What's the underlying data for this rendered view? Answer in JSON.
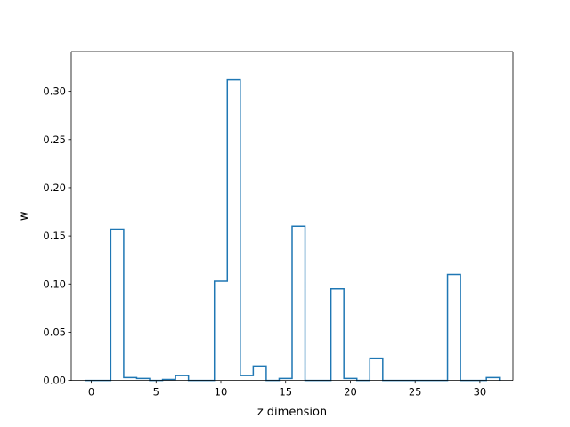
{
  "chart_data": {
    "type": "bar",
    "style": "step-histogram",
    "xlabel": "z dimension",
    "ylabel": "w",
    "xlim": [
      -1.55,
      32.55
    ],
    "ylim": [
      0,
      0.3412
    ],
    "x_ticks": [
      0,
      5,
      10,
      15,
      20,
      25,
      30
    ],
    "x_tick_labels": [
      "0",
      "5",
      "10",
      "15",
      "20",
      "25",
      "30"
    ],
    "y_ticks": [
      0.0,
      0.05,
      0.1,
      0.15,
      0.2,
      0.25,
      0.3
    ],
    "y_tick_labels": [
      "0.00",
      "0.05",
      "0.10",
      "0.15",
      "0.20",
      "0.25",
      "0.30"
    ],
    "grid": false,
    "line_color": "#1f77b4",
    "x": [
      0,
      1,
      2,
      3,
      4,
      5,
      6,
      7,
      8,
      9,
      10,
      11,
      12,
      13,
      14,
      15,
      16,
      17,
      18,
      19,
      20,
      21,
      22,
      23,
      24,
      25,
      26,
      27,
      28,
      29,
      30,
      31
    ],
    "values": [
      0.0,
      0.0,
      0.157,
      0.003,
      0.002,
      0.0,
      0.001,
      0.005,
      0.0,
      0.0,
      0.103,
      0.312,
      0.005,
      0.015,
      0.0,
      0.002,
      0.16,
      0.0,
      0.0,
      0.095,
      0.002,
      0.0,
      0.023,
      0.0,
      0.0,
      0.0,
      0.0,
      0.0,
      0.11,
      0.0,
      0.0,
      0.003
    ]
  }
}
